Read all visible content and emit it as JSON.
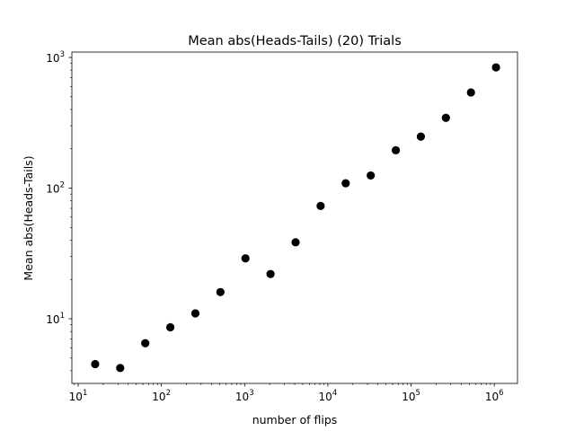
{
  "chart_data": {
    "type": "scatter",
    "title": "Mean abs(Heads-Tails) (20) Trials",
    "xlabel": "number of flips",
    "ylabel": "Mean abs(Heads-Tails)",
    "xscale": "log",
    "yscale": "log",
    "xlim": [
      8.4,
      1900000
    ],
    "ylim": [
      3.2,
      1100
    ],
    "grid": false,
    "legend": "none",
    "marker_color": "#000000",
    "x_ticks": [
      {
        "value": 10,
        "base": "10",
        "exp": "1"
      },
      {
        "value": 100,
        "base": "10",
        "exp": "2"
      },
      {
        "value": 1000,
        "base": "10",
        "exp": "3"
      },
      {
        "value": 10000,
        "base": "10",
        "exp": "4"
      },
      {
        "value": 100000,
        "base": "10",
        "exp": "5"
      },
      {
        "value": 1000000,
        "base": "10",
        "exp": "6"
      }
    ],
    "y_ticks": [
      {
        "value": 10,
        "base": "10",
        "exp": "1"
      },
      {
        "value": 100,
        "base": "10",
        "exp": "2"
      },
      {
        "value": 1000,
        "base": "10",
        "exp": "3"
      }
    ],
    "points": [
      {
        "x": 16,
        "y": 4.5
      },
      {
        "x": 32,
        "y": 4.2
      },
      {
        "x": 64,
        "y": 6.5
      },
      {
        "x": 128,
        "y": 8.6
      },
      {
        "x": 256,
        "y": 11
      },
      {
        "x": 512,
        "y": 16
      },
      {
        "x": 1024,
        "y": 29
      },
      {
        "x": 2048,
        "y": 22
      },
      {
        "x": 4096,
        "y": 38.5
      },
      {
        "x": 8192,
        "y": 73
      },
      {
        "x": 16384,
        "y": 109
      },
      {
        "x": 32768,
        "y": 125
      },
      {
        "x": 65536,
        "y": 195
      },
      {
        "x": 131072,
        "y": 248
      },
      {
        "x": 262144,
        "y": 345
      },
      {
        "x": 524288,
        "y": 540
      },
      {
        "x": 1048576,
        "y": 840
      }
    ]
  }
}
